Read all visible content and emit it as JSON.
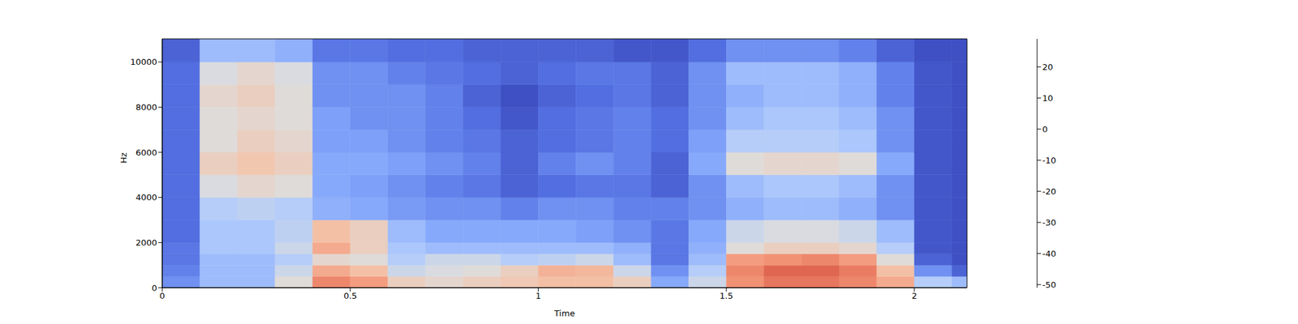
{
  "chart_data": {
    "type": "heatmap",
    "x_label": "Time",
    "y_label": "Hz",
    "x_edges": [
      0,
      0.1,
      0.2,
      0.3,
      0.4,
      0.5,
      0.6,
      0.7,
      0.8,
      0.9,
      1.0,
      1.1,
      1.2,
      1.3,
      1.4,
      1.5,
      1.6,
      1.7,
      1.8,
      1.9,
      2.0,
      2.1,
      2.14
    ],
    "y_edges": [
      0,
      500,
      1000,
      1500,
      2000,
      3000,
      4000,
      5000,
      6000,
      7000,
      8000,
      9000,
      10000,
      11025
    ],
    "cells": [
      [
        -35,
        -25,
        -25,
        -10,
        12,
        8,
        -5,
        -8,
        -5,
        -3,
        0,
        0,
        -5,
        -30,
        -15,
        10,
        15,
        15,
        12,
        5,
        -20,
        -25
      ],
      [
        -38,
        -25,
        -25,
        -15,
        5,
        0,
        -15,
        -12,
        -10,
        -5,
        3,
        2,
        -15,
        -35,
        -20,
        12,
        18,
        18,
        14,
        0,
        -35,
        -45
      ],
      [
        -40,
        -25,
        -25,
        -20,
        -8,
        -10,
        -20,
        -15,
        -15,
        -20,
        -18,
        -15,
        -25,
        -40,
        -25,
        8,
        10,
        12,
        8,
        -10,
        -45,
        -50
      ],
      [
        -40,
        -22,
        -22,
        -15,
        5,
        -5,
        -22,
        -25,
        -25,
        -25,
        -25,
        -25,
        -28,
        -40,
        -28,
        -10,
        -5,
        -5,
        -8,
        -20,
        -48,
        -50
      ],
      [
        -42,
        -22,
        -22,
        -18,
        0,
        -5,
        -25,
        -30,
        -30,
        -30,
        -30,
        -32,
        -35,
        -40,
        -30,
        -15,
        -12,
        -12,
        -15,
        -25,
        -48,
        -50
      ],
      [
        -42,
        -20,
        -18,
        -20,
        -28,
        -30,
        -33,
        -35,
        -35,
        -38,
        -35,
        -35,
        -38,
        -38,
        -35,
        -28,
        -25,
        -25,
        -28,
        -35,
        -48,
        -50
      ],
      [
        -42,
        -12,
        -8,
        -10,
        -30,
        -32,
        -35,
        -38,
        -40,
        -45,
        -42,
        -40,
        -40,
        -45,
        -35,
        -25,
        -22,
        -22,
        -25,
        -35,
        -48,
        -50
      ],
      [
        -42,
        -5,
        -2,
        -5,
        -30,
        -30,
        -32,
        -35,
        -38,
        -45,
        -38,
        -35,
        -38,
        -45,
        -30,
        -10,
        -8,
        -8,
        -10,
        -30,
        -48,
        -50
      ],
      [
        -42,
        -10,
        -5,
        -8,
        -32,
        -32,
        -35,
        -38,
        -40,
        -45,
        -42,
        -40,
        -38,
        -42,
        -32,
        -20,
        -20,
        -20,
        -22,
        -35,
        -48,
        -50
      ],
      [
        -42,
        -10,
        -8,
        -10,
        -32,
        -35,
        -35,
        -38,
        -42,
        -48,
        -42,
        -40,
        -38,
        -42,
        -35,
        -25,
        -22,
        -22,
        -25,
        -35,
        -48,
        -50
      ],
      [
        -42,
        -8,
        -5,
        -10,
        -35,
        -35,
        -35,
        -38,
        -45,
        -50,
        -45,
        -42,
        -40,
        -45,
        -35,
        -28,
        -25,
        -25,
        -28,
        -38,
        -48,
        -50
      ],
      [
        -42,
        -12,
        -8,
        -12,
        -35,
        -35,
        -38,
        -40,
        -42,
        -45,
        -42,
        -40,
        -40,
        -45,
        -35,
        -25,
        -25,
        -25,
        -28,
        -38,
        -48,
        -50
      ],
      [
        -45,
        -25,
        -25,
        -28,
        -40,
        -40,
        -42,
        -42,
        -45,
        -45,
        -45,
        -45,
        -48,
        -48,
        -42,
        -35,
        -35,
        -35,
        -38,
        -45,
        -50,
        -50
      ]
    ],
    "xlim": [
      0,
      2.14
    ],
    "ylim": [
      0,
      11025
    ],
    "xticks": [
      0,
      0.5,
      1,
      1.5,
      2
    ],
    "yticks": [
      0,
      2000,
      4000,
      6000,
      8000,
      10000
    ],
    "colorbar": {
      "range": [
        -51,
        29
      ],
      "ticks": [
        -50,
        -40,
        -30,
        -20,
        -10,
        0,
        10,
        20
      ]
    }
  }
}
